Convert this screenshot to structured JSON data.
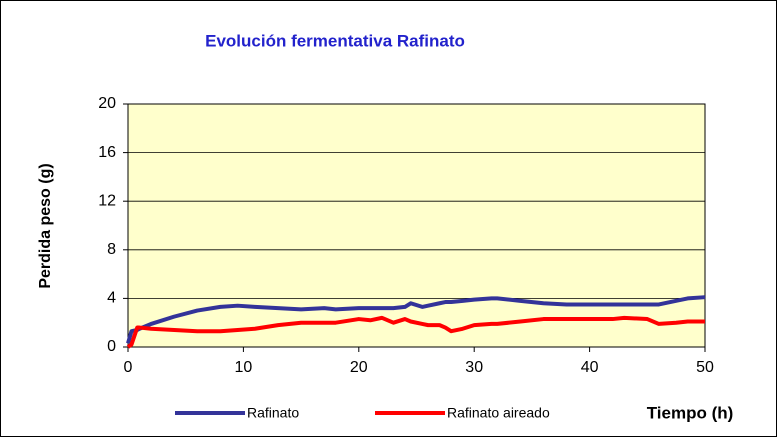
{
  "chart_data": {
    "type": "line",
    "title": "Evolución fermentativa Rafinato",
    "x_label": "Tiempo (h)",
    "y_label": "Perdida peso (g)",
    "x": [
      0,
      0.3,
      0.8,
      1,
      2,
      4,
      6,
      8,
      9.5,
      11,
      13,
      15,
      17,
      18,
      20,
      21,
      22,
      23,
      24,
      24.5,
      25.5,
      26,
      27,
      27.5,
      28,
      29,
      30,
      31.5,
      32,
      34,
      36,
      38,
      40,
      42,
      43,
      45,
      46,
      47.5,
      48.5,
      50
    ],
    "series": [
      {
        "name": "Rafinato",
        "color": "#333399",
        "values": [
          0.3,
          1.3,
          1.4,
          1.5,
          1.9,
          2.5,
          3.0,
          3.3,
          3.4,
          3.3,
          3.2,
          3.1,
          3.2,
          3.1,
          3.2,
          3.2,
          3.2,
          3.2,
          3.3,
          3.6,
          3.3,
          3.4,
          3.6,
          3.7,
          3.7,
          3.8,
          3.9,
          4.0,
          4.0,
          3.8,
          3.6,
          3.5,
          3.5,
          3.5,
          3.5,
          3.5,
          3.5,
          3.8,
          4.0,
          4.1
        ]
      },
      {
        "name": "Rafinato aireado",
        "color": "#ff0000",
        "values": [
          0,
          0.2,
          1.6,
          1.6,
          1.5,
          1.4,
          1.3,
          1.3,
          1.4,
          1.5,
          1.8,
          2.0,
          2.0,
          2.0,
          2.3,
          2.2,
          2.4,
          2.0,
          2.3,
          2.1,
          1.9,
          1.8,
          1.8,
          1.6,
          1.3,
          1.5,
          1.8,
          1.9,
          1.9,
          2.1,
          2.3,
          2.3,
          2.3,
          2.3,
          2.4,
          2.3,
          1.9,
          2.0,
          2.1,
          2.1
        ]
      }
    ],
    "xlim": [
      0,
      50
    ],
    "xticks": [
      0,
      10,
      20,
      30,
      40,
      50
    ],
    "ylim": [
      0,
      20
    ],
    "yticks": [
      0,
      4,
      8,
      12,
      16,
      20
    ],
    "grid": true,
    "plot_background": "#ffffcc",
    "title_color": "#2222cc"
  }
}
